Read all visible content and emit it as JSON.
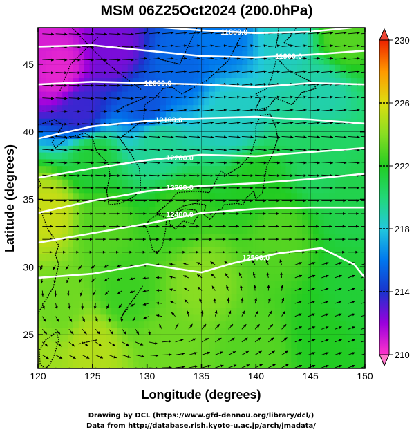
{
  "title": "MSM 06Z25Oct2024 (200.0hPa)",
  "x_axis": {
    "label": "Longitude (degrees)",
    "range": [
      120,
      150
    ],
    "ticks": [
      120,
      125,
      130,
      135,
      140,
      145,
      150
    ]
  },
  "y_axis": {
    "label": "Latitude  (degrees)",
    "range": [
      22.5,
      47.7
    ],
    "ticks": [
      25,
      30,
      35,
      40,
      45
    ]
  },
  "colorbar": {
    "range": [
      210,
      230
    ],
    "ticks": [
      210,
      214,
      218,
      222,
      226,
      230
    ],
    "stops": [
      {
        "v": 210,
        "c": "#ff33cc"
      },
      {
        "v": 212,
        "c": "#9a00dd"
      },
      {
        "v": 214,
        "c": "#1a33cc"
      },
      {
        "v": 216,
        "c": "#0077ee"
      },
      {
        "v": 218,
        "c": "#22c8dd"
      },
      {
        "v": 220,
        "c": "#22d877"
      },
      {
        "v": 222,
        "c": "#22cc22"
      },
      {
        "v": 224,
        "c": "#88dd22"
      },
      {
        "v": 226,
        "c": "#dddd11"
      },
      {
        "v": 228,
        "c": "#ff9900"
      },
      {
        "v": 230,
        "c": "#ee2200"
      }
    ],
    "upper_arrow_color": "#ee4433",
    "lower_arrow_color": "#ff77cc"
  },
  "contours": [
    {
      "label": "11800.0",
      "lat_path": [
        [
          120,
          48.2
        ],
        [
          130,
          47.8
        ],
        [
          135,
          47.5
        ],
        [
          140,
          47.3
        ],
        [
          145,
          47.4
        ],
        [
          150,
          47.8
        ]
      ],
      "label_at": [
        138,
        47.4
      ]
    },
    {
      "label": "11900.0",
      "lat_path": [
        [
          120,
          46.3
        ],
        [
          125,
          46.4
        ],
        [
          130,
          46.0
        ],
        [
          135,
          45.6
        ],
        [
          140,
          45.5
        ],
        [
          145,
          45.7
        ],
        [
          150,
          46.0
        ]
      ],
      "label_at": [
        143,
        45.6
      ]
    },
    {
      "label": "12000.0",
      "lat_path": [
        [
          120,
          43.5
        ],
        [
          125,
          43.7
        ],
        [
          130,
          43.6
        ],
        [
          135,
          43.5
        ],
        [
          140,
          43.3
        ],
        [
          145,
          43.6
        ],
        [
          150,
          43.5
        ]
      ],
      "label_at": [
        131,
        43.6
      ]
    },
    {
      "label": "12100.0",
      "lat_path": [
        [
          120,
          39.5
        ],
        [
          125,
          40.4
        ],
        [
          130,
          40.8
        ],
        [
          135,
          41.0
        ],
        [
          140,
          41.1
        ],
        [
          145,
          40.9
        ],
        [
          150,
          40.6
        ]
      ],
      "label_at": [
        132,
        40.9
      ]
    },
    {
      "label": "12200.0",
      "lat_path": [
        [
          120,
          36.6
        ],
        [
          125,
          37.3
        ],
        [
          130,
          37.9
        ],
        [
          135,
          38.3
        ],
        [
          140,
          38.2
        ],
        [
          145,
          38.5
        ],
        [
          150,
          38.8
        ]
      ],
      "label_at": [
        133,
        38.1
      ]
    },
    {
      "label": "12300.0",
      "lat_path": [
        [
          120,
          34.0
        ],
        [
          125,
          34.9
        ],
        [
          130,
          35.6
        ],
        [
          135,
          36.0
        ],
        [
          140,
          36.2
        ],
        [
          145,
          36.5
        ],
        [
          150,
          36.9
        ]
      ],
      "label_at": [
        133,
        35.9
      ]
    },
    {
      "label": "12400.0",
      "lat_path": [
        [
          120,
          31.8
        ],
        [
          125,
          32.5
        ],
        [
          130,
          33.2
        ],
        [
          135,
          34.0
        ],
        [
          140,
          34.3
        ],
        [
          145,
          34.4
        ],
        [
          150,
          34.4
        ]
      ],
      "label_at": [
        133,
        33.9
      ]
    },
    {
      "label": "12500.0",
      "lat_path": [
        [
          120,
          29.2
        ],
        [
          125,
          29.5
        ],
        [
          130,
          30.2
        ],
        [
          135,
          29.6
        ],
        [
          138,
          30.3
        ],
        [
          142,
          31.0
        ],
        [
          146,
          31.4
        ],
        [
          149,
          30.2
        ],
        [
          150,
          29.2
        ]
      ],
      "label_at": [
        140,
        30.7
      ]
    }
  ],
  "temperature_field": [
    {
      "lon": 120,
      "lat": 47,
      "t": 210.8
    },
    {
      "lon": 122,
      "lat": 44.5,
      "t": 210.5
    },
    {
      "lon": 127,
      "lat": 46,
      "t": 212.5
    },
    {
      "lon": 124,
      "lat": 41.5,
      "t": 213.5
    },
    {
      "lon": 130,
      "lat": 42,
      "t": 215
    },
    {
      "lon": 133,
      "lat": 45,
      "t": 215.5
    },
    {
      "lon": 137,
      "lat": 47,
      "t": 216
    },
    {
      "lon": 143,
      "lat": 47,
      "t": 218.5
    },
    {
      "lon": 148,
      "lat": 47,
      "t": 223
    },
    {
      "lon": 146,
      "lat": 43,
      "t": 219
    },
    {
      "lon": 138,
      "lat": 41,
      "t": 218.5
    },
    {
      "lon": 131,
      "lat": 39,
      "t": 219.5
    },
    {
      "lon": 125,
      "lat": 38,
      "t": 221.5
    },
    {
      "lon": 121,
      "lat": 34,
      "t": 225.5
    },
    {
      "lon": 126,
      "lat": 33,
      "t": 223
    },
    {
      "lon": 133,
      "lat": 34,
      "t": 222.5
    },
    {
      "lon": 140,
      "lat": 36,
      "t": 222
    },
    {
      "lon": 146,
      "lat": 38,
      "t": 220.5
    },
    {
      "lon": 149,
      "lat": 35,
      "t": 221
    },
    {
      "lon": 142,
      "lat": 32,
      "t": 223
    },
    {
      "lon": 135,
      "lat": 29,
      "t": 224
    },
    {
      "lon": 128,
      "lat": 28,
      "t": 222.5
    },
    {
      "lon": 122,
      "lat": 27,
      "t": 223.5
    },
    {
      "lon": 125,
      "lat": 24,
      "t": 225
    },
    {
      "lon": 132,
      "lat": 24,
      "t": 223.5
    },
    {
      "lon": 140,
      "lat": 24,
      "t": 223
    },
    {
      "lon": 146,
      "lat": 25,
      "t": 222
    },
    {
      "lon": 149,
      "lat": 28,
      "t": 221.5
    },
    {
      "lon": 120,
      "lat": 23,
      "t": 224.5
    }
  ],
  "credits": [
    "Drawing by DCL (https://www.gfd-dennou.org/library/dcl/)",
    "Data from http://database.rish.kyoto-u.ac.jp/arch/jmadata/"
  ]
}
